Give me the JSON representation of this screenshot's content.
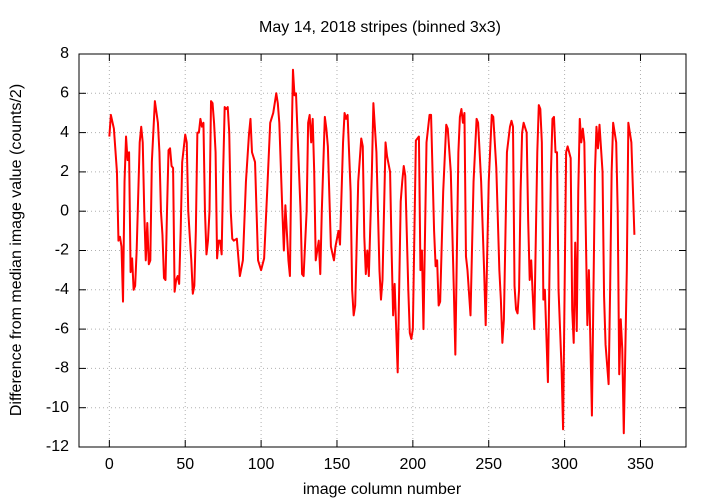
{
  "chart_data": {
    "type": "line",
    "title": "May 14, 2018 stripes (binned 3x3)",
    "x_label": "image column number",
    "y_label": "Difference from median image value (counts/2)",
    "xlim": [
      -20,
      380
    ],
    "xticks": [
      0,
      50,
      100,
      150,
      200,
      250,
      300,
      350
    ],
    "ylim": [
      -12,
      8
    ],
    "yticks": [
      -12,
      -10,
      -8,
      -6,
      -4,
      -2,
      0,
      2,
      4,
      6,
      8
    ],
    "grid": true,
    "x": [
      0,
      1,
      3,
      5,
      6,
      7,
      8,
      9,
      10,
      11,
      12,
      13,
      14,
      15,
      16,
      17,
      18,
      20,
      21,
      22,
      23,
      24,
      25,
      26,
      27,
      28,
      30,
      32,
      33,
      34,
      35,
      36,
      37,
      38,
      39,
      40,
      41,
      42,
      43,
      44,
      45,
      46,
      47,
      48,
      50,
      51,
      52,
      53,
      54,
      55,
      56,
      57,
      58,
      59,
      60,
      61,
      62,
      63,
      64,
      65,
      66,
      67,
      68,
      69,
      70,
      71,
      72,
      73,
      74,
      75,
      76,
      77,
      78,
      79,
      80,
      81,
      82,
      84,
      86,
      88,
      90,
      92,
      93,
      94,
      96,
      98,
      100,
      102,
      104,
      106,
      108,
      110,
      111,
      112,
      114,
      115,
      116,
      118,
      119,
      120,
      121,
      122,
      123,
      124,
      126,
      127,
      128,
      130,
      131,
      132,
      133,
      134,
      135,
      136,
      138,
      139,
      140,
      142,
      143,
      144,
      146,
      148,
      149,
      151,
      152,
      154,
      155,
      156,
      157,
      159,
      160,
      161,
      162,
      164,
      166,
      167,
      168,
      169,
      170,
      171,
      173,
      174,
      176,
      178,
      179,
      180,
      182,
      183,
      185,
      186,
      187,
      188,
      190,
      192,
      193,
      194,
      195,
      197,
      198,
      199,
      200,
      202,
      204,
      205,
      206,
      207,
      209,
      211,
      212,
      214,
      215,
      216,
      217,
      218,
      220,
      222,
      223,
      225,
      227,
      228,
      230,
      231,
      232,
      233,
      234,
      235,
      236,
      238,
      240,
      242,
      243,
      245,
      247,
      248,
      250,
      252,
      253,
      255,
      257,
      258,
      259,
      260,
      262,
      264,
      265,
      266,
      267,
      268,
      269,
      270,
      271,
      272,
      273,
      275,
      276,
      277,
      278,
      280,
      282,
      283,
      284,
      285,
      286,
      287,
      289,
      291,
      292,
      293,
      294,
      295,
      296,
      297,
      298,
      299,
      301,
      302,
      304,
      305,
      306,
      307,
      308,
      309,
      310,
      311,
      312,
      313,
      315,
      316,
      318,
      320,
      321,
      322,
      323,
      325,
      326,
      327,
      329,
      330,
      331,
      332,
      334,
      335,
      336,
      337,
      338,
      339,
      341,
      342,
      344,
      346
    ],
    "series": [
      {
        "name": "stripes",
        "color": "#ff0000",
        "values": [
          3.8,
          4.9,
          4.2,
          2,
          -1.5,
          -1.3,
          -1.8,
          -4.6,
          1.5,
          3.8,
          2.6,
          3,
          -3.1,
          -2.4,
          -4,
          -3.8,
          -2,
          3.5,
          4.3,
          3.5,
          0,
          -2.5,
          -0.6,
          -2.7,
          -2.5,
          2.5,
          5.6,
          4.5,
          3,
          0,
          -1.2,
          -3.4,
          -3.5,
          0,
          3.1,
          3.2,
          2.3,
          2.2,
          -4.1,
          -3.5,
          -3.3,
          -3.7,
          -1,
          2.5,
          3.9,
          3.5,
          0,
          -1.3,
          -2.5,
          -4.2,
          -3.8,
          -1,
          4,
          4,
          4.7,
          4.3,
          4.5,
          0,
          -2.2,
          -1.5,
          0,
          5.6,
          5.5,
          4.5,
          3,
          -2.4,
          -1.5,
          -1.5,
          -2.2,
          2,
          5.3,
          5.2,
          5.3,
          4,
          0,
          -1.4,
          -1.5,
          -1.4,
          -3.3,
          -2.5,
          1.5,
          3.9,
          4.7,
          3,
          2.5,
          -2.5,
          -3,
          -2.4,
          1,
          4.5,
          5,
          6,
          5.5,
          4.5,
          0,
          -2,
          0.3,
          -2.5,
          -3.3,
          3,
          7.2,
          5.9,
          6,
          4,
          0,
          -3.2,
          -3.3,
          0,
          4.5,
          4.9,
          3.5,
          4.7,
          2,
          -2.5,
          -1.5,
          -3.2,
          0,
          4.8,
          4.2,
          3.3,
          -1.8,
          -2.5,
          -1.8,
          -1,
          -1.7,
          3.5,
          5,
          4.7,
          4.9,
          1,
          -4,
          -5.3,
          -4.8,
          1.5,
          3.7,
          3.3,
          -1.3,
          -3.2,
          -2,
          -3.3,
          2,
          5.5,
          3,
          -3,
          -4.5,
          -3.5,
          3.5,
          2.8,
          2,
          -2,
          -5.3,
          -3.7,
          -8.2,
          0.5,
          1.5,
          2.3,
          1.8,
          -4,
          -6.2,
          -6.5,
          -6,
          3.6,
          3.8,
          -3,
          -2,
          -6,
          3.5,
          4.9,
          4.9,
          -1,
          -2.8,
          -2.5,
          -4.8,
          -4.6,
          1,
          4.4,
          4.2,
          2,
          -4,
          -7.3,
          3,
          4.8,
          5.2,
          4.5,
          5,
          -2.3,
          -3,
          -5.3,
          1.5,
          4.7,
          4.5,
          1.5,
          -3.1,
          -5.8,
          1.5,
          4.9,
          4.8,
          2.2,
          -3,
          -4.5,
          -6.7,
          -5.5,
          3,
          4.3,
          4.6,
          4.3,
          -3.8,
          -5,
          -5.2,
          -4,
          1,
          4,
          4.5,
          4,
          -0.5,
          -3.5,
          -2.5,
          -6,
          3,
          5.4,
          5.2,
          3.5,
          -4.5,
          -4,
          -8.7,
          2,
          4.7,
          4.8,
          3,
          3,
          -4,
          -6,
          -8,
          -11.1,
          3,
          3.3,
          2.7,
          -5,
          -6.7,
          -1.6,
          -6.1,
          1,
          4.7,
          3.5,
          4.2,
          3.5,
          -5.8,
          -3,
          -10.4,
          2,
          4.3,
          3.2,
          4.4,
          2,
          -4.3,
          -6.8,
          -8.8,
          -4,
          2,
          4.5,
          3.5,
          0,
          -8.3,
          -5.5,
          -7,
          -11.3,
          -3,
          4.5,
          3.5,
          -1.2
        ]
      }
    ]
  }
}
